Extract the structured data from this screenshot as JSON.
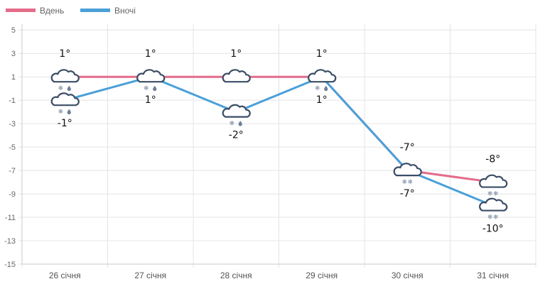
{
  "chart_data": {
    "type": "line",
    "categories": [
      "26 січня",
      "27 січня",
      "28 січня",
      "29 січня",
      "30 січня",
      "31 січня"
    ],
    "series": [
      {
        "name": "Вдень",
        "color": "#e46c8a",
        "values": [
          1,
          1,
          1,
          1,
          -7,
          -8
        ],
        "labels": [
          "1°",
          "1°",
          "1°",
          "1°",
          "-7°",
          "-8°"
        ],
        "icons": [
          "cloud-snow-rain-icon",
          "cloud-snow-rain-icon",
          "cloud-icon",
          "cloud-snow-rain-icon",
          "cloud-snow-icon",
          "cloud-snow-icon"
        ]
      },
      {
        "name": "Вночі",
        "color": "#4aa0d8",
        "values": [
          -1,
          1,
          -2,
          1,
          -7,
          -10
        ],
        "labels": [
          "-1°",
          "1°",
          "-2°",
          "1°",
          "-7°",
          "-10°"
        ],
        "icons": [
          "cloud-snow-rain-icon",
          "cloud-snow-rain-icon",
          "cloud-snow-rain-icon",
          "cloud-snow-rain-icon",
          "cloud-snow-icon",
          "cloud-snow-icon"
        ]
      }
    ],
    "y_ticks": [
      "5",
      "3",
      "1",
      "-1",
      "-3",
      "-5",
      "-7",
      "-9",
      "-11",
      "-13",
      "-15"
    ],
    "ylim": [
      -15,
      5.5
    ],
    "grid": true,
    "legend_position": "top-left"
  }
}
